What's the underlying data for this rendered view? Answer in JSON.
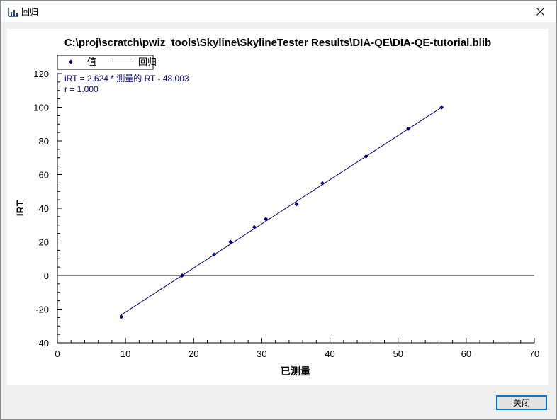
{
  "window": {
    "title": "回归",
    "close_icon": "close-icon",
    "app_icon": "regression-chart-icon"
  },
  "footer": {
    "close_label": "关闭"
  },
  "chart_data": {
    "type": "scatter",
    "title": "C:\\proj\\scratch\\pwiz_tools\\Skyline\\SkylineTester  Results\\DIA-QE\\DIA-QE-tutorial.blib",
    "xlabel": "已测量",
    "ylabel": "IRT",
    "xlim": [
      0,
      70
    ],
    "ylim": [
      -40,
      120
    ],
    "xticks": [
      0,
      10,
      20,
      30,
      40,
      50,
      60,
      70
    ],
    "yticks": [
      -40,
      -20,
      0,
      20,
      40,
      60,
      80,
      100,
      120
    ],
    "grid": false,
    "zero_line": true,
    "legend": {
      "placement": "top-left",
      "entries": [
        {
          "label": "值",
          "kind": "marker"
        },
        {
          "label": "回归",
          "kind": "line"
        }
      ]
    },
    "series": [
      {
        "name": "值",
        "x": [
          9.4,
          18.3,
          23.0,
          25.4,
          28.9,
          30.6,
          35.1,
          38.9,
          45.3,
          51.5,
          56.4
        ],
        "y": [
          -24.6,
          0.0,
          12.4,
          20.0,
          28.8,
          33.6,
          42.4,
          54.8,
          70.8,
          87.2,
          100.0
        ]
      }
    ],
    "regression": {
      "name": "回归",
      "slope": 2.624,
      "intercept": -48.003,
      "x_range": [
        9.4,
        56.4
      ]
    },
    "annotations": [
      "iRT = 2.624 * 测量的 RT - 48.003",
      "r = 1.000"
    ],
    "colors": {
      "series": "#00007f",
      "axis": "#000000"
    }
  }
}
